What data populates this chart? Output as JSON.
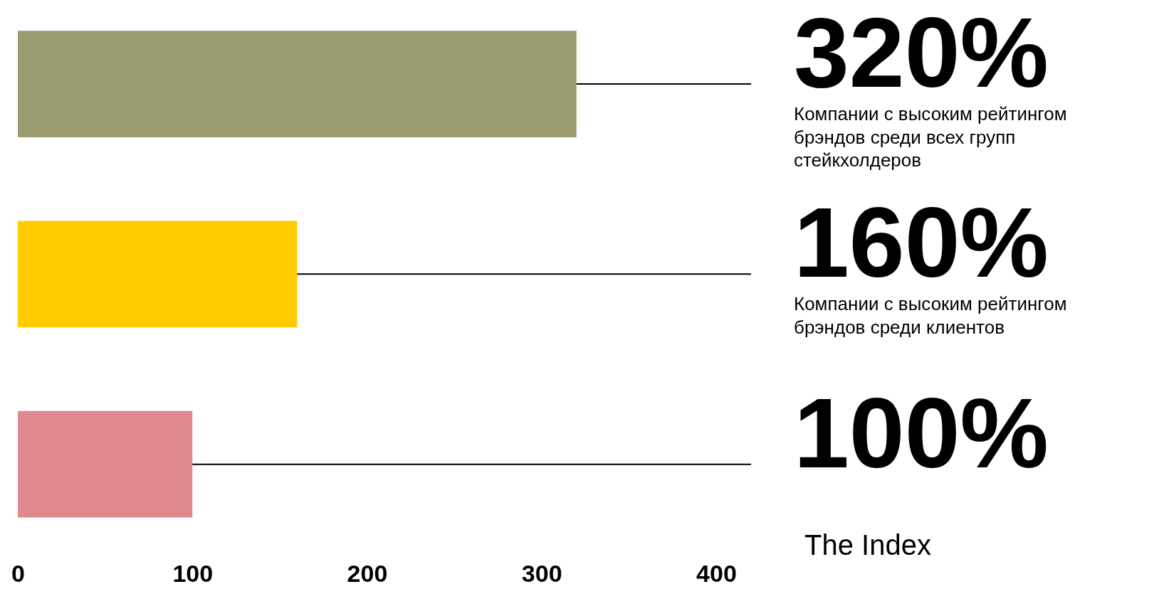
{
  "chart_data": {
    "type": "bar",
    "orientation": "horizontal",
    "categories": [
      null,
      null,
      null
    ],
    "values": [
      320,
      160,
      100
    ],
    "colors": [
      "#9c9c72",
      "#ffcc00",
      "#de8890"
    ],
    "value_labels": [
      "320%",
      "160%",
      "100%"
    ],
    "annotations": [
      "Компании с высоким рейтингом брэндов среди всех групп стейкхолдеров",
      "Компании с высоким рейтингом брэндов среди клиентов",
      "The Index"
    ],
    "xlim": [
      0,
      420
    ],
    "xticks": [
      0,
      100,
      200,
      300,
      400
    ],
    "grid": false,
    "legend": false
  }
}
